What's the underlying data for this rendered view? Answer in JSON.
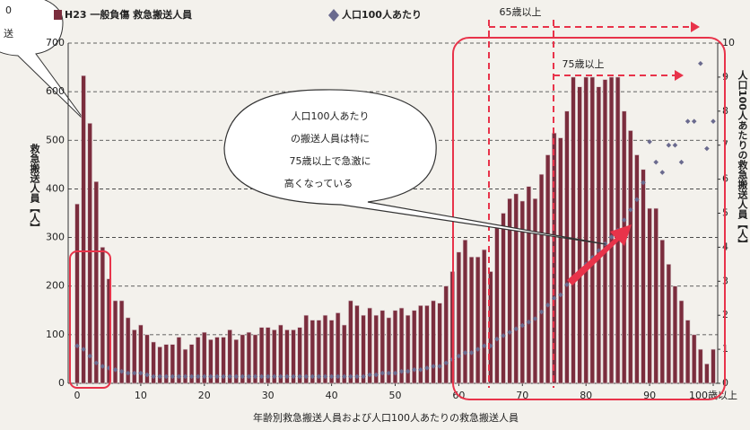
{
  "chart_data": {
    "type": "bar",
    "xlabel": "年齢別救急搬送人員および人口100人あたりの救急搬送人員",
    "ylabel": "救急搬送人員【人】",
    "y2label": "人口100人あたりの救急搬送人員【人】",
    "x": [
      0,
      1,
      2,
      3,
      4,
      5,
      6,
      7,
      8,
      9,
      10,
      11,
      12,
      13,
      14,
      15,
      16,
      17,
      18,
      19,
      20,
      21,
      22,
      23,
      24,
      25,
      26,
      27,
      28,
      29,
      30,
      31,
      32,
      33,
      34,
      35,
      36,
      37,
      38,
      39,
      40,
      41,
      42,
      43,
      44,
      45,
      46,
      47,
      48,
      49,
      50,
      51,
      52,
      53,
      54,
      55,
      56,
      57,
      58,
      59,
      60,
      61,
      62,
      63,
      64,
      65,
      66,
      67,
      68,
      69,
      70,
      71,
      72,
      73,
      74,
      75,
      76,
      77,
      78,
      79,
      80,
      81,
      82,
      83,
      84,
      85,
      86,
      87,
      88,
      89,
      90,
      91,
      92,
      93,
      94,
      95,
      96,
      97,
      98,
      99,
      100
    ],
    "xlim": [
      0,
      100
    ],
    "xticks": [
      0,
      10,
      20,
      30,
      40,
      50,
      60,
      70,
      80,
      90,
      {
        "value": 100,
        "label": "100歳以上"
      }
    ],
    "series": [
      {
        "name": "H23 一般負傷 救急搬送人員",
        "color": "#7b2d3d",
        "values": [
          369,
          633,
          535,
          415,
          280,
          215,
          170,
          170,
          135,
          110,
          120,
          100,
          85,
          75,
          80,
          80,
          95,
          70,
          80,
          95,
          105,
          90,
          95,
          95,
          110,
          90,
          100,
          105,
          100,
          115,
          115,
          110,
          120,
          110,
          110,
          115,
          140,
          130,
          130,
          140,
          130,
          145,
          120,
          170,
          160,
          140,
          155,
          140,
          150,
          135,
          150,
          155,
          140,
          150,
          160,
          160,
          170,
          165,
          200,
          230,
          270,
          295,
          260,
          260,
          275,
          230,
          320,
          350,
          380,
          390,
          375,
          405,
          380,
          430,
          470,
          515,
          505,
          560,
          630,
          610,
          630,
          630,
          610,
          625,
          630,
          630,
          560,
          520,
          470,
          440,
          360,
          360,
          295,
          245,
          200,
          170,
          130,
          100,
          70,
          40,
          70
        ]
      },
      {
        "name": "人口100人あたり",
        "type": "scatter",
        "axis": "y2",
        "color": "#6a6a8e",
        "values": [
          1.1,
          1.0,
          0.8,
          0.6,
          0.5,
          0.45,
          0.4,
          0.35,
          0.3,
          0.3,
          0.3,
          0.25,
          0.2,
          0.2,
          0.2,
          0.2,
          0.2,
          0.2,
          0.2,
          0.2,
          0.2,
          0.2,
          0.2,
          0.2,
          0.2,
          0.2,
          0.2,
          0.2,
          0.2,
          0.2,
          0.2,
          0.2,
          0.2,
          0.2,
          0.2,
          0.2,
          0.2,
          0.2,
          0.2,
          0.2,
          0.2,
          0.2,
          0.2,
          0.2,
          0.2,
          0.2,
          0.25,
          0.25,
          0.3,
          0.3,
          0.3,
          0.35,
          0.35,
          0.4,
          0.4,
          0.45,
          0.5,
          0.5,
          0.6,
          0.7,
          0.8,
          0.9,
          0.9,
          1.0,
          1.1,
          1.1,
          1.3,
          1.4,
          1.5,
          1.6,
          1.7,
          1.8,
          1.9,
          2.1,
          2.3,
          2.5,
          2.6,
          2.9,
          3.1,
          3.3,
          3.5,
          3.7,
          3.9,
          4.1,
          4.3,
          4.5,
          4.8,
          5.1,
          5.4,
          5.9,
          7.1,
          6.5,
          6.2,
          7.0,
          7.0,
          6.5,
          7.7,
          7.7,
          9.4,
          6.9,
          7.7
        ]
      }
    ],
    "ylim": [
      0,
      700
    ],
    "yticks": [
      0,
      100,
      200,
      300,
      400,
      500,
      600,
      700
    ],
    "y2lim": [
      0,
      10
    ],
    "y2ticks": [
      0,
      1,
      2,
      3,
      4,
      5,
      6,
      7,
      8,
      9,
      10
    ],
    "grid": true,
    "annotations": [
      "65歳以上",
      "75歳以上"
    ],
    "callout": [
      "人口100人あたり",
      "の搬送人員は特に",
      "75歳以上で急激に",
      "高くなっている"
    ],
    "corner_fragment": [
      "0",
      "送"
    ]
  }
}
